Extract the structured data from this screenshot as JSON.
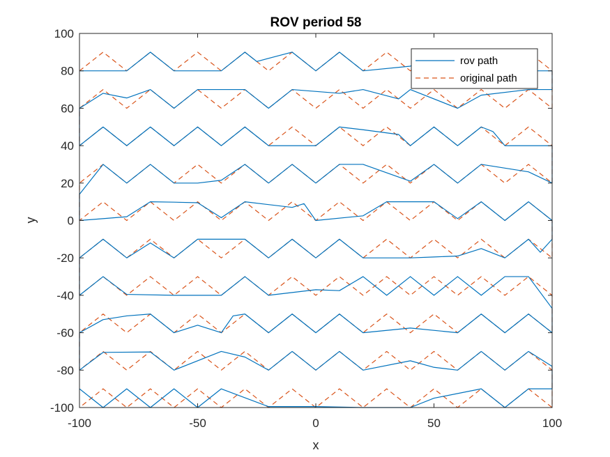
{
  "chart_data": {
    "type": "line",
    "title": "ROV period 58",
    "xlabel": "x",
    "ylabel": "y",
    "xlim": [
      -100,
      100
    ],
    "ylim": [
      -100,
      100
    ],
    "xticks": [
      -100,
      -50,
      0,
      50,
      100
    ],
    "yticks": [
      -100,
      -80,
      -60,
      -40,
      -20,
      0,
      20,
      40,
      60,
      80,
      100
    ],
    "grid": false,
    "legend_position": "top-right",
    "colors": {
      "rov": "#0072BD",
      "original": "#D95319"
    },
    "series": [
      {
        "name": "rov path",
        "style": "solid",
        "x": [
          -100,
          -80,
          -70,
          -60,
          -40,
          -30,
          -25,
          -10,
          0,
          10,
          20,
          40,
          50,
          60,
          70,
          80,
          100,
          100,
          90,
          70,
          60,
          40,
          35,
          20,
          10,
          -10,
          -20,
          -30,
          -50,
          -60,
          -70,
          -80,
          -90,
          -100,
          -100,
          -90,
          -80,
          -70,
          -60,
          -50,
          -40,
          -30,
          -20,
          0,
          10,
          20,
          35,
          40,
          50,
          60,
          70,
          75,
          80,
          100,
          100,
          90,
          70,
          60,
          50,
          40,
          20,
          10,
          0,
          -10,
          -20,
          -30,
          -40,
          -50,
          -60,
          -70,
          -80,
          -90,
          -100,
          -100,
          -80,
          -70,
          -60,
          -50,
          -40,
          -30,
          -10,
          -5,
          0,
          20,
          30,
          50,
          60,
          70,
          80,
          90,
          100,
          100,
          95,
          90,
          80,
          70,
          60,
          50,
          40,
          20,
          10,
          0,
          -10,
          -20,
          -30,
          -50,
          -60,
          -70,
          -80,
          -90,
          -100,
          -100,
          -90,
          -80,
          -60,
          -40,
          -30,
          -20,
          0,
          10,
          20,
          30,
          40,
          50,
          60,
          70,
          80,
          90,
          100,
          100,
          90,
          80,
          70,
          60,
          40,
          20,
          10,
          0,
          -10,
          -20,
          -30,
          -35,
          -40,
          -50,
          -60,
          -70,
          -80,
          -90,
          -100,
          -100,
          -90,
          -70,
          -60,
          -40,
          -30,
          -20,
          -10,
          0,
          10,
          20,
          40,
          50,
          60,
          70,
          80,
          90,
          100,
          100,
          90,
          80,
          70,
          50,
          40,
          20,
          0,
          -20,
          -40,
          -50,
          -60,
          -70,
          -80,
          -90,
          -100
        ],
        "y": [
          80,
          80,
          90,
          80,
          80,
          90,
          85,
          90,
          80,
          90,
          80,
          82.5,
          90,
          80,
          90,
          80,
          80,
          70,
          70,
          67,
          60,
          70,
          65,
          70,
          68,
          70,
          60,
          70,
          70,
          60,
          70,
          65.5,
          68,
          60,
          40,
          50,
          40,
          50,
          40,
          50,
          40,
          50,
          40,
          40,
          50,
          48.5,
          46,
          40,
          50,
          40,
          50,
          47.5,
          40,
          40,
          20,
          26,
          30,
          20,
          30,
          21,
          30,
          30,
          20,
          30,
          20,
          30,
          21.5,
          20,
          20,
          30,
          20,
          30,
          14,
          0,
          2,
          10,
          9.8,
          9.5,
          1.5,
          10,
          7,
          9,
          0,
          2.5,
          10,
          10,
          1,
          10,
          0,
          10,
          0,
          -10,
          -17,
          -10,
          -20,
          -15,
          -19,
          -19.5,
          -20,
          -20,
          -10,
          -20,
          -10,
          -20,
          -10,
          -10,
          -20,
          -12,
          -20,
          -10,
          -20,
          -40,
          -30,
          -39.5,
          -40,
          -40,
          -30,
          -40,
          -37,
          -37.5,
          -30,
          -40,
          -30,
          -40,
          -30,
          -40,
          -30,
          -30,
          -47,
          -60,
          -50,
          -60,
          -50,
          -60,
          -57.5,
          -60,
          -50,
          -60,
          -50,
          -60,
          -50,
          -51,
          -60,
          -56,
          -60,
          -50,
          -51,
          -53,
          -60,
          -80,
          -70.5,
          -70.3,
          -80,
          -70,
          -73,
          -80,
          -70,
          -80,
          -70,
          -80,
          -75,
          -78.5,
          -80,
          -70,
          -80,
          -70,
          -78,
          -90,
          -90,
          -100,
          -90,
          -95,
          -100,
          -100,
          -99.5,
          -99.5,
          -90,
          -100,
          -90,
          -100,
          -90,
          -100,
          -90
        ]
      },
      {
        "name": "original path",
        "style": "dashed",
        "x": [
          -100,
          -90,
          -80,
          -70,
          -60,
          -50,
          -40,
          -30,
          -20,
          -10,
          0,
          10,
          20,
          30,
          40,
          50,
          60,
          70,
          80,
          90,
          100,
          100,
          90,
          80,
          70,
          60,
          50,
          40,
          30,
          20,
          10,
          0,
          -10,
          -20,
          -30,
          -40,
          -50,
          -60,
          -70,
          -80,
          -90,
          -100,
          -100,
          -90,
          -80,
          -70,
          -60,
          -50,
          -40,
          -30,
          -20,
          -10,
          0,
          10,
          20,
          30,
          40,
          50,
          60,
          70,
          80,
          90,
          100,
          100,
          90,
          80,
          70,
          60,
          50,
          40,
          30,
          20,
          10,
          0,
          -10,
          -20,
          -30,
          -40,
          -50,
          -60,
          -70,
          -80,
          -90,
          -100,
          -100,
          -90,
          -80,
          -70,
          -60,
          -50,
          -40,
          -30,
          -20,
          -10,
          0,
          10,
          20,
          30,
          40,
          50,
          60,
          70,
          80,
          90,
          100,
          100,
          90,
          80,
          70,
          60,
          50,
          40,
          30,
          20,
          10,
          0,
          -10,
          -20,
          -30,
          -40,
          -50,
          -60,
          -70,
          -80,
          -90,
          -100,
          -100,
          -90,
          -80,
          -70,
          -60,
          -50,
          -40,
          -30,
          -20,
          -10,
          0,
          10,
          20,
          30,
          40,
          50,
          60,
          70,
          80,
          90,
          100,
          100,
          90,
          80,
          70,
          60,
          50,
          40,
          30,
          20,
          10,
          0,
          -10,
          -20,
          -30,
          -40,
          -50,
          -60,
          -70,
          -80,
          -90,
          -100,
          -100,
          -90,
          -80,
          -70,
          -60,
          -50,
          -40,
          -30,
          -20,
          -10,
          0,
          10,
          20,
          30,
          40,
          50,
          60,
          70,
          80,
          90,
          100,
          100,
          90,
          80,
          70,
          60,
          50,
          40,
          30,
          20,
          10,
          0,
          -10,
          -20,
          -30,
          -40,
          -50,
          -60,
          -70,
          -80,
          -90,
          -100
        ],
        "y": [
          80,
          90,
          80,
          90,
          80,
          90,
          80,
          90,
          80,
          90,
          80,
          90,
          80,
          90,
          80,
          90,
          80,
          90,
          80,
          90,
          80,
          60,
          70,
          60,
          70,
          60,
          70,
          60,
          70,
          60,
          70,
          60,
          70,
          60,
          70,
          60,
          70,
          60,
          70,
          60,
          70,
          60,
          40,
          50,
          40,
          50,
          40,
          50,
          40,
          50,
          40,
          50,
          40,
          50,
          40,
          50,
          40,
          50,
          40,
          50,
          40,
          50,
          40,
          20,
          30,
          20,
          30,
          20,
          30,
          20,
          30,
          20,
          30,
          20,
          30,
          20,
          30,
          20,
          30,
          20,
          30,
          20,
          30,
          20,
          0,
          10,
          0,
          10,
          0,
          10,
          0,
          10,
          0,
          10,
          0,
          10,
          0,
          10,
          0,
          10,
          0,
          10,
          0,
          10,
          0,
          -20,
          -10,
          -20,
          -10,
          -20,
          -10,
          -20,
          -10,
          -20,
          -10,
          -20,
          -10,
          -20,
          -10,
          -20,
          -10,
          -20,
          -10,
          -20,
          -10,
          -20,
          -40,
          -30,
          -40,
          -30,
          -40,
          -30,
          -40,
          -30,
          -40,
          -30,
          -40,
          -30,
          -40,
          -30,
          -40,
          -30,
          -40,
          -30,
          -40,
          -30,
          -40,
          -60,
          -50,
          -60,
          -50,
          -60,
          -50,
          -60,
          -50,
          -60,
          -50,
          -60,
          -50,
          -60,
          -50,
          -60,
          -50,
          -60,
          -50,
          -60,
          -50,
          -60,
          -80,
          -70,
          -80,
          -70,
          -80,
          -70,
          -80,
          -70,
          -80,
          -70,
          -80,
          -70,
          -80,
          -70,
          -80,
          -70,
          -80,
          -70,
          -80,
          -70,
          -80,
          -100,
          -90,
          -100,
          -90,
          -100,
          -90,
          -100,
          -90,
          -100,
          -90,
          -100,
          -90,
          -100,
          -90,
          -100,
          -90,
          -100,
          -90,
          -100,
          -90,
          -100
        ]
      }
    ]
  }
}
